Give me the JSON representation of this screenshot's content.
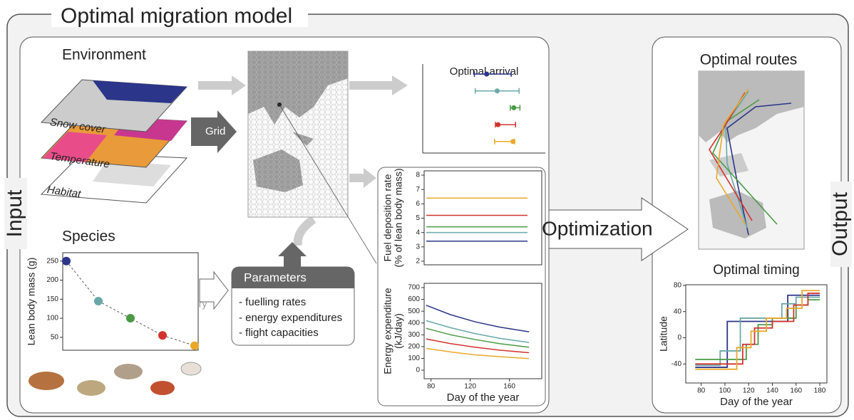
{
  "title": "Optimal migration model",
  "input_label": "Input",
  "output_label": "Output",
  "environment": {
    "title": "Environment",
    "layers": [
      "Snow cover",
      "Temperature",
      "Habitat"
    ],
    "grid_label": "Grid"
  },
  "species": {
    "title": "Species",
    "allometry_label": "Allometry"
  },
  "parameters": {
    "title": "Parameters",
    "items": [
      "- fuelling rates",
      "- energy expenditures",
      "- flight capacities"
    ]
  },
  "optimization_label": "Optimization",
  "routes_title": "Optimal routes",
  "chart_data": [
    {
      "type": "errorbar",
      "title": "Optimal arrival",
      "xlim": [
        60,
        200
      ],
      "values": [
        133,
        145,
        164,
        146,
        163
      ],
      "lower": [
        119,
        120,
        160,
        143,
        142
      ],
      "upper": [
        161,
        170,
        171,
        166,
        165
      ],
      "colors": [
        "#2b3589",
        "#6aa8a8",
        "#4a9a45",
        "#d2332e",
        "#e8a92a"
      ]
    },
    {
      "type": "scatter",
      "ylabel": "Lean body mass (g)",
      "ylim": [
        16,
        272
      ],
      "yticks": [
        50,
        100,
        150,
        200,
        250
      ],
      "values": [
        250,
        145,
        100,
        55,
        28
      ],
      "colors": [
        "#2b3589",
        "#6aa8a8",
        "#4a9a45",
        "#d2332e",
        "#e8a92a"
      ]
    },
    {
      "type": "hline",
      "ylabel": [
        "Fuel deposition rate",
        "(% of lean body mass)"
      ],
      "ylim": [
        1.75,
        8.3
      ],
      "yticks": [
        2,
        3,
        4,
        5,
        6,
        7,
        8
      ],
      "series": [
        {
          "color": "#e8a92a",
          "value": 6.4
        },
        {
          "color": "#d2332e",
          "value": 5.2
        },
        {
          "color": "#4a9a45",
          "value": 4.4
        },
        {
          "color": "#6aa8a8",
          "value": 4.0
        },
        {
          "color": "#2b3589",
          "value": 3.4
        }
      ]
    },
    {
      "type": "line",
      "ylabel": [
        "Energy expenditure",
        "(kJ/day)"
      ],
      "xlabel": "Day of the year",
      "xlim": [
        73,
        193
      ],
      "ylim": [
        -72,
        736
      ],
      "xticks": [
        80,
        120,
        160
      ],
      "yticks": [
        0,
        100,
        200,
        300,
        400,
        500,
        600,
        700
      ],
      "x": [
        75,
        100,
        125,
        150,
        180
      ],
      "series": [
        {
          "color": "#2b3589",
          "values": [
            550,
            470,
            410,
            365,
            325
          ]
        },
        {
          "color": "#6aa8a8",
          "values": [
            420,
            360,
            310,
            270,
            235
          ]
        },
        {
          "color": "#4a9a45",
          "values": [
            355,
            300,
            260,
            225,
            195
          ]
        },
        {
          "color": "#d2332e",
          "values": [
            265,
            225,
            195,
            170,
            148
          ]
        },
        {
          "color": "#e8a92a",
          "values": [
            185,
            155,
            130,
            115,
            98
          ]
        }
      ]
    },
    {
      "type": "step",
      "title": "Optimal timing",
      "ylabel": "Latitude",
      "xlabel": "Day of the year",
      "xlim": [
        67,
        186
      ],
      "ylim": [
        -69,
        81
      ],
      "xticks": [
        80,
        100,
        120,
        140,
        160,
        180
      ],
      "yticks": [
        -40,
        0,
        40,
        80
      ],
      "series": [
        {
          "color": "#2b3589",
          "x": [
            75,
            102,
            153,
            180
          ],
          "values": [
            -45,
            25,
            65,
            65
          ]
        },
        {
          "color": "#6aa8a8",
          "x": [
            75,
            96,
            113,
            123,
            148,
            160,
            180
          ],
          "values": [
            -42,
            -20,
            30,
            30,
            52,
            62,
            62
          ]
        },
        {
          "color": "#4a9a45",
          "x": [
            75,
            100,
            118,
            128,
            140,
            160,
            170,
            180
          ],
          "values": [
            -33,
            -33,
            -10,
            20,
            30,
            50,
            58,
            58
          ]
        },
        {
          "color": "#d2332e",
          "x": [
            75,
            105,
            115,
            125,
            140,
            158,
            170,
            180
          ],
          "values": [
            -40,
            -40,
            -10,
            15,
            25,
            50,
            68,
            68
          ]
        },
        {
          "color": "#e8a92a",
          "x": [
            75,
            100,
            110,
            122,
            135,
            152,
            165,
            180
          ],
          "values": [
            -48,
            -48,
            -15,
            10,
            30,
            45,
            72,
            72
          ]
        }
      ]
    }
  ]
}
